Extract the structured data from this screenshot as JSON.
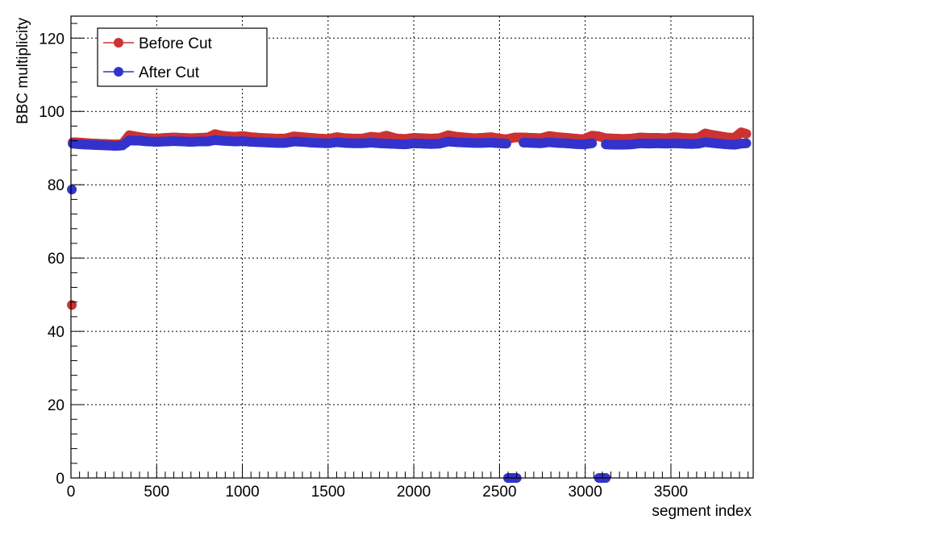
{
  "chart_data": {
    "type": "scatter",
    "title": "",
    "xlabel": "segment  index",
    "ylabel": "BBC  multiplicity",
    "xlim": [
      0,
      3980
    ],
    "ylim": [
      0,
      126
    ],
    "x_ticks": [
      0,
      500,
      1000,
      1500,
      2000,
      2500,
      3000,
      3500
    ],
    "y_ticks": [
      0,
      20,
      40,
      60,
      80,
      100,
      120
    ],
    "x_tick_labels": [
      "0",
      "500",
      "1000",
      "1500",
      "2000",
      "2500",
      "3000",
      "3500"
    ],
    "y_tick_labels": [
      "0",
      "20",
      "40",
      "60",
      "80",
      "100",
      "120"
    ],
    "grid": true,
    "legend_position": "top-left",
    "series": [
      {
        "name": "Before Cut",
        "color": "#cc3333",
        "points": [
          [
            5,
            47.2
          ],
          [
            10,
            91.6
          ],
          [
            60,
            91.5
          ],
          [
            110,
            91.3
          ],
          [
            160,
            91.2
          ],
          [
            210,
            91.1
          ],
          [
            260,
            91.0
          ],
          [
            300,
            91.1
          ],
          [
            340,
            93.5
          ],
          [
            400,
            93.0
          ],
          [
            450,
            92.7
          ],
          [
            500,
            92.6
          ],
          [
            550,
            92.8
          ],
          [
            600,
            92.9
          ],
          [
            650,
            92.8
          ],
          [
            700,
            92.7
          ],
          [
            750,
            92.8
          ],
          [
            800,
            92.9
          ],
          [
            840,
            93.8
          ],
          [
            880,
            93.4
          ],
          [
            920,
            93.2
          ],
          [
            960,
            93.1
          ],
          [
            1000,
            93.3
          ],
          [
            1050,
            93.0
          ],
          [
            1100,
            92.8
          ],
          [
            1150,
            92.7
          ],
          [
            1200,
            92.6
          ],
          [
            1250,
            92.6
          ],
          [
            1300,
            93.2
          ],
          [
            1350,
            93.0
          ],
          [
            1400,
            92.8
          ],
          [
            1450,
            92.6
          ],
          [
            1500,
            92.5
          ],
          [
            1550,
            93.0
          ],
          [
            1600,
            92.7
          ],
          [
            1650,
            92.6
          ],
          [
            1700,
            92.6
          ],
          [
            1750,
            93.1
          ],
          [
            1800,
            92.9
          ],
          [
            1840,
            93.4
          ],
          [
            1900,
            92.6
          ],
          [
            1950,
            92.5
          ],
          [
            2000,
            92.8
          ],
          [
            2050,
            92.7
          ],
          [
            2100,
            92.6
          ],
          [
            2150,
            92.7
          ],
          [
            2200,
            93.5
          ],
          [
            2250,
            93.1
          ],
          [
            2300,
            92.9
          ],
          [
            2350,
            92.7
          ],
          [
            2400,
            92.8
          ],
          [
            2450,
            93.0
          ],
          [
            2500,
            92.6
          ],
          [
            2540,
            92.4
          ],
          [
            2590,
            92.9
          ],
          [
            2640,
            92.9
          ],
          [
            2690,
            92.8
          ],
          [
            2740,
            92.7
          ],
          [
            2790,
            93.3
          ],
          [
            2840,
            93.0
          ],
          [
            2890,
            92.8
          ],
          [
            2940,
            92.6
          ],
          [
            2990,
            92.4
          ],
          [
            3040,
            93.4
          ],
          [
            3080,
            93.2
          ],
          [
            3120,
            92.7
          ],
          [
            3170,
            92.6
          ],
          [
            3220,
            92.5
          ],
          [
            3270,
            92.6
          ],
          [
            3320,
            92.9
          ],
          [
            3370,
            92.8
          ],
          [
            3420,
            92.8
          ],
          [
            3470,
            92.7
          ],
          [
            3520,
            93.0
          ],
          [
            3570,
            92.8
          ],
          [
            3620,
            92.7
          ],
          [
            3660,
            92.8
          ],
          [
            3700,
            94.0
          ],
          [
            3740,
            93.6
          ],
          [
            3780,
            93.3
          ],
          [
            3830,
            92.9
          ],
          [
            3870,
            92.8
          ],
          [
            3910,
            94.3
          ],
          [
            3940,
            93.9
          ]
        ]
      },
      {
        "name": "After Cut",
        "color": "#3333cc",
        "points": [
          [
            5,
            78.7
          ],
          [
            10,
            91.2
          ],
          [
            60,
            91.0
          ],
          [
            110,
            90.9
          ],
          [
            160,
            90.8
          ],
          [
            210,
            90.7
          ],
          [
            260,
            90.6
          ],
          [
            300,
            90.7
          ],
          [
            340,
            92.1
          ],
          [
            400,
            92.0
          ],
          [
            450,
            91.8
          ],
          [
            500,
            91.7
          ],
          [
            550,
            91.8
          ],
          [
            600,
            91.9
          ],
          [
            650,
            91.8
          ],
          [
            700,
            91.7
          ],
          [
            750,
            91.8
          ],
          [
            800,
            91.8
          ],
          [
            840,
            92.2
          ],
          [
            880,
            92.0
          ],
          [
            920,
            91.9
          ],
          [
            960,
            91.8
          ],
          [
            1000,
            91.9
          ],
          [
            1050,
            91.7
          ],
          [
            1100,
            91.6
          ],
          [
            1150,
            91.5
          ],
          [
            1200,
            91.4
          ],
          [
            1250,
            91.4
          ],
          [
            1300,
            91.8
          ],
          [
            1350,
            91.7
          ],
          [
            1400,
            91.5
          ],
          [
            1450,
            91.4
          ],
          [
            1500,
            91.3
          ],
          [
            1550,
            91.6
          ],
          [
            1600,
            91.4
          ],
          [
            1650,
            91.3
          ],
          [
            1700,
            91.3
          ],
          [
            1750,
            91.5
          ],
          [
            1800,
            91.3
          ],
          [
            1850,
            91.2
          ],
          [
            1900,
            91.1
          ],
          [
            1950,
            91.0
          ],
          [
            2000,
            91.3
          ],
          [
            2050,
            91.2
          ],
          [
            2100,
            91.1
          ],
          [
            2150,
            91.2
          ],
          [
            2200,
            91.8
          ],
          [
            2250,
            91.6
          ],
          [
            2300,
            91.5
          ],
          [
            2350,
            91.4
          ],
          [
            2400,
            91.4
          ],
          [
            2450,
            91.5
          ],
          [
            2500,
            91.3
          ],
          [
            2540,
            91.2
          ],
          [
            2550,
            0
          ],
          [
            2575,
            0
          ],
          [
            2600,
            0
          ],
          [
            2640,
            91.5
          ],
          [
            2690,
            91.4
          ],
          [
            2740,
            91.3
          ],
          [
            2790,
            91.6
          ],
          [
            2840,
            91.4
          ],
          [
            2890,
            91.3
          ],
          [
            2940,
            91.1
          ],
          [
            2990,
            91.0
          ],
          [
            3040,
            91.3
          ],
          [
            3080,
            0
          ],
          [
            3100,
            0
          ],
          [
            3120,
            0
          ],
          [
            3120,
            91.0
          ],
          [
            3170,
            90.9
          ],
          [
            3220,
            90.9
          ],
          [
            3270,
            91.0
          ],
          [
            3320,
            91.3
          ],
          [
            3370,
            91.2
          ],
          [
            3420,
            91.3
          ],
          [
            3470,
            91.2
          ],
          [
            3520,
            91.3
          ],
          [
            3570,
            91.2
          ],
          [
            3620,
            91.1
          ],
          [
            3660,
            91.2
          ],
          [
            3700,
            91.6
          ],
          [
            3740,
            91.4
          ],
          [
            3780,
            91.2
          ],
          [
            3830,
            91.0
          ],
          [
            3870,
            90.9
          ],
          [
            3910,
            91.2
          ],
          [
            3940,
            91.3
          ]
        ]
      }
    ]
  }
}
